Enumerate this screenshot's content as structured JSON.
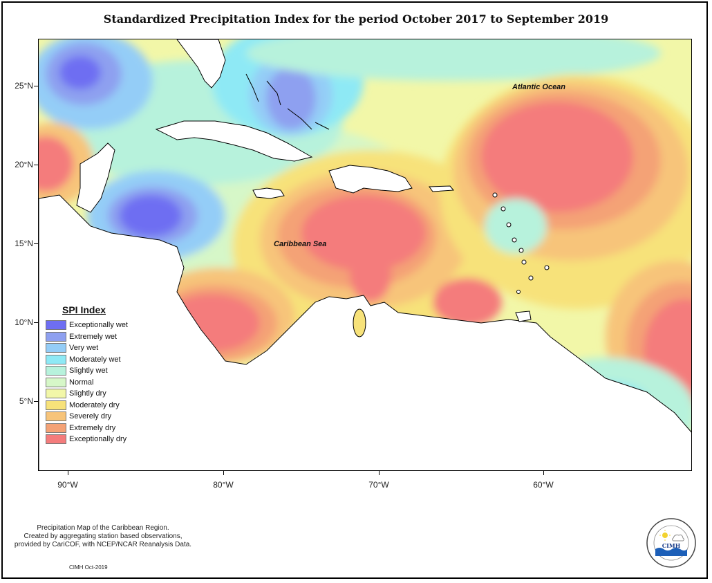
{
  "title": "Standardized Precipitation Index for the period October 2017 to September 2019",
  "map": {
    "lat_ticks": [
      "25°N",
      "20°N",
      "15°N",
      "10°N",
      "5°N"
    ],
    "lon_ticks": [
      "90°W",
      "80°W",
      "70°W",
      "60°W"
    ],
    "places": [
      {
        "name": "Atlantic Ocean"
      },
      {
        "name": "Caribbean Sea"
      }
    ]
  },
  "legend": {
    "title": "SPI Index",
    "items": [
      {
        "label": "Exceptionally wet",
        "color": "#6e6ef2"
      },
      {
        "label": "Extremely wet",
        "color": "#8ea0f0"
      },
      {
        "label": "Very wet",
        "color": "#94cdf7"
      },
      {
        "label": "Moderately wet",
        "color": "#8ee9f5"
      },
      {
        "label": "Slightly wet",
        "color": "#b7f2dc"
      },
      {
        "label": "Normal",
        "color": "#d6f7c8"
      },
      {
        "label": "Slightly dry",
        "color": "#f2f7a8"
      },
      {
        "label": "Moderately dry",
        "color": "#f7e27a"
      },
      {
        "label": "Severely dry",
        "color": "#f7c47a"
      },
      {
        "label": "Extremely dry",
        "color": "#f4a276"
      },
      {
        "label": "Exceptionally dry",
        "color": "#f47c7c"
      }
    ]
  },
  "note": {
    "lines": [
      "Precipitation Map of the Caribbean Region.",
      "Created by aggregating station based observations,",
      "provided by CariCOF, with NCEP/NCAR Reanalysis Data."
    ],
    "credit": "CIMH Oct-2019"
  },
  "logo": {
    "text": "CIMH"
  }
}
